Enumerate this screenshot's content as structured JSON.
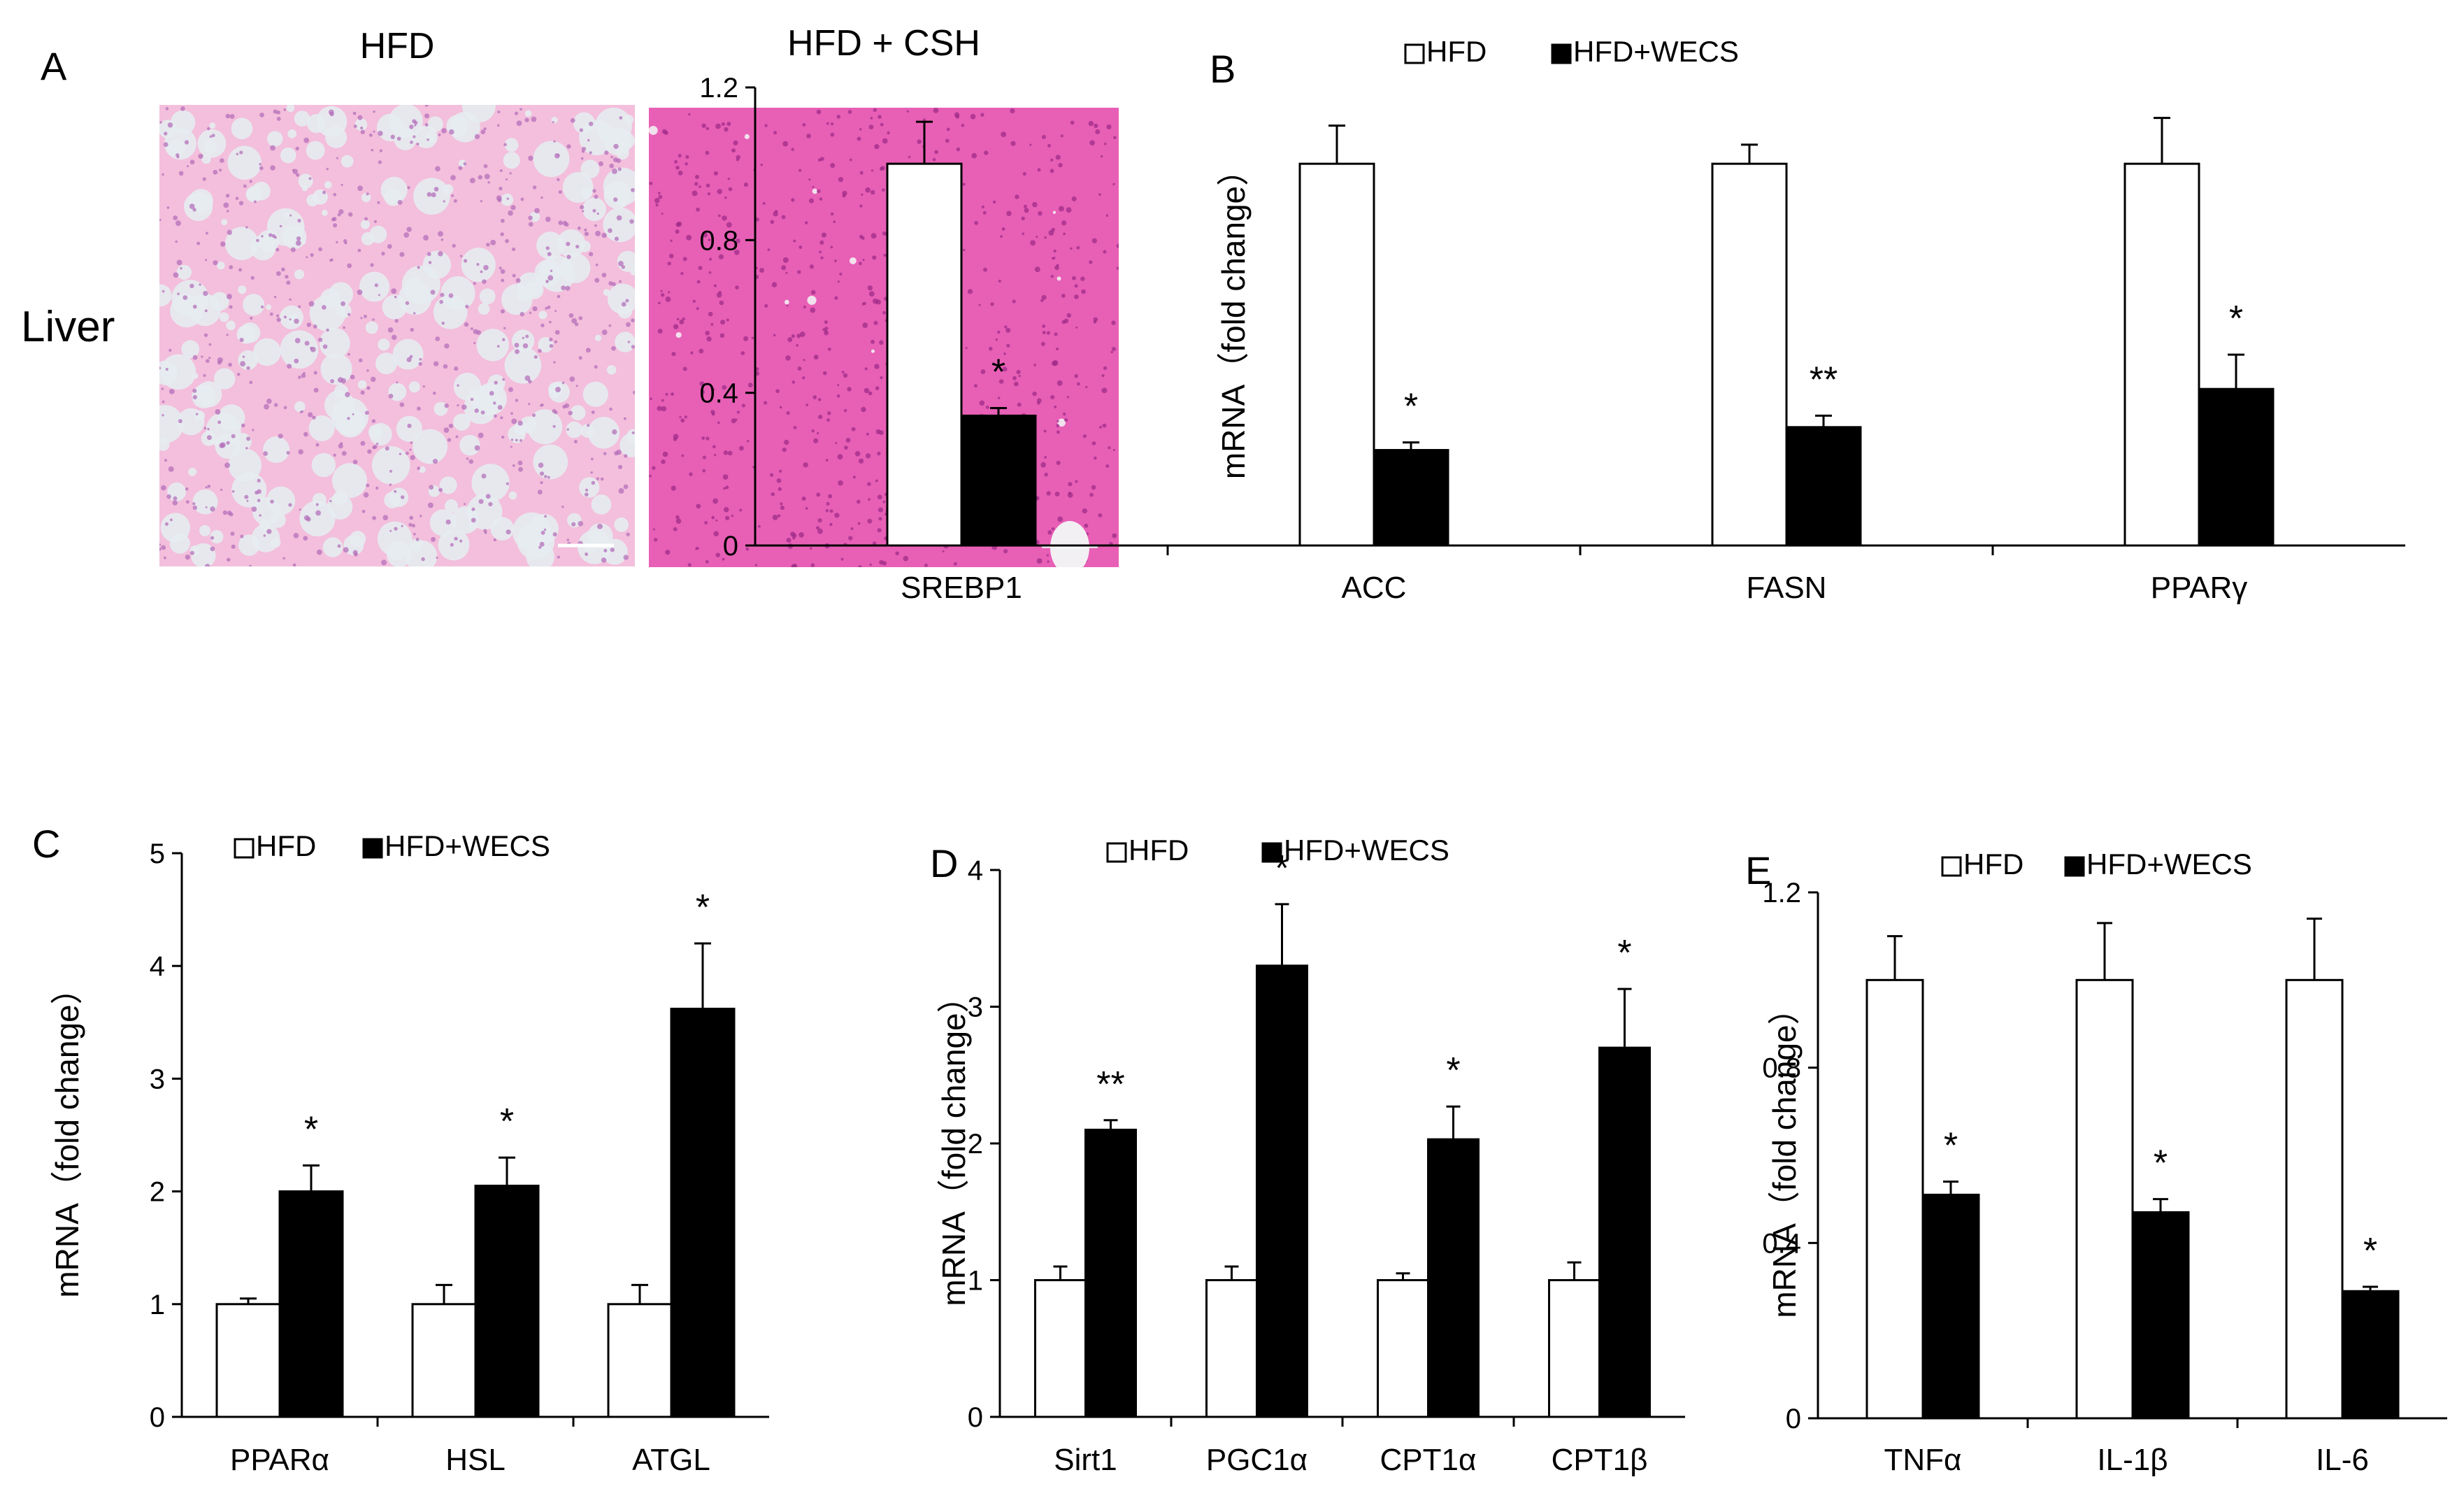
{
  "panel_a": {
    "letter": "A",
    "col_titles": [
      "HFD",
      "HFD + CSH"
    ],
    "row_label": "Liver",
    "images": [
      {
        "bg": "#f3bfdc",
        "dot": "#b06ab8",
        "vac": "#e6ecef"
      },
      {
        "bg": "#e85fb6",
        "dot": "#9a2a86",
        "vac": "#f2f0f3"
      }
    ]
  },
  "colors": {
    "hfd_fill": "#ffffff",
    "wecs_fill": "#000000",
    "stroke": "#000000"
  },
  "chart_data": [
    {
      "letter": "B",
      "type": "bar",
      "ylabel": "mRNA（fold change）",
      "ylim": [
        0,
        1.2
      ],
      "yticks": [
        "0",
        "0.4",
        "0.8",
        "1.2"
      ],
      "legend": [
        "HFD",
        "HFD+WECS"
      ],
      "categories": [
        "SREBP1",
        "ACC",
        "FASN",
        "PPARγ"
      ],
      "series": [
        {
          "name": "HFD",
          "values": [
            1.0,
            1.0,
            1.0,
            1.0
          ],
          "errors": [
            0.11,
            0.1,
            0.05,
            0.12
          ]
        },
        {
          "name": "HFD+WECS",
          "values": [
            0.34,
            0.25,
            0.31,
            0.41
          ],
          "errors": [
            0.02,
            0.02,
            0.03,
            0.09
          ]
        }
      ],
      "stars": [
        "*",
        "*",
        "**",
        "*"
      ]
    },
    {
      "letter": "C",
      "type": "bar",
      "ylabel": "mRNA（fold change）",
      "ylim": [
        0,
        5
      ],
      "yticks": [
        "0",
        "1",
        "2",
        "3",
        "4",
        "5"
      ],
      "legend": [
        "HFD",
        "HFD+WECS"
      ],
      "categories": [
        "PPARα",
        "HSL",
        "ATGL"
      ],
      "series": [
        {
          "name": "HFD",
          "values": [
            1.0,
            1.0,
            1.0
          ],
          "errors": [
            0.05,
            0.17,
            0.17
          ]
        },
        {
          "name": "HFD+WECS",
          "values": [
            2.0,
            2.05,
            3.62
          ],
          "errors": [
            0.23,
            0.25,
            0.58
          ]
        }
      ],
      "stars": [
        "*",
        "*",
        "*"
      ]
    },
    {
      "letter": "D",
      "type": "bar",
      "ylabel": "mRNA（fold change）",
      "ylim": [
        0,
        4
      ],
      "yticks": [
        "0",
        "1",
        "2",
        "3",
        "4"
      ],
      "legend": [
        "HFD",
        "HFD+WECS"
      ],
      "categories": [
        "Sirt1",
        "PGC1α",
        "CPT1α",
        "CPT1β"
      ],
      "series": [
        {
          "name": "HFD",
          "values": [
            1.0,
            1.0,
            1.0,
            1.0
          ],
          "errors": [
            0.1,
            0.1,
            0.05,
            0.13
          ]
        },
        {
          "name": "HFD+WECS",
          "values": [
            2.1,
            3.3,
            2.03,
            2.7
          ],
          "errors": [
            0.07,
            0.45,
            0.24,
            0.43
          ]
        }
      ],
      "stars": [
        "**",
        "*",
        "*",
        "*"
      ]
    },
    {
      "letter": "E",
      "type": "bar",
      "ylabel": "mRNA（fold change）",
      "ylim": [
        0,
        1.2
      ],
      "yticks": [
        "0",
        "0.4",
        "0.8",
        "1.2"
      ],
      "legend": [
        "HFD",
        "HFD+WECS"
      ],
      "categories": [
        "TNFα",
        "IL-1β",
        "IL-6"
      ],
      "series": [
        {
          "name": "HFD",
          "values": [
            1.0,
            1.0,
            1.0
          ],
          "errors": [
            0.1,
            0.13,
            0.14
          ]
        },
        {
          "name": "HFD+WECS",
          "values": [
            0.51,
            0.47,
            0.29
          ],
          "errors": [
            0.03,
            0.03,
            0.01
          ]
        }
      ],
      "stars": [
        "*",
        "*",
        "*"
      ]
    }
  ]
}
